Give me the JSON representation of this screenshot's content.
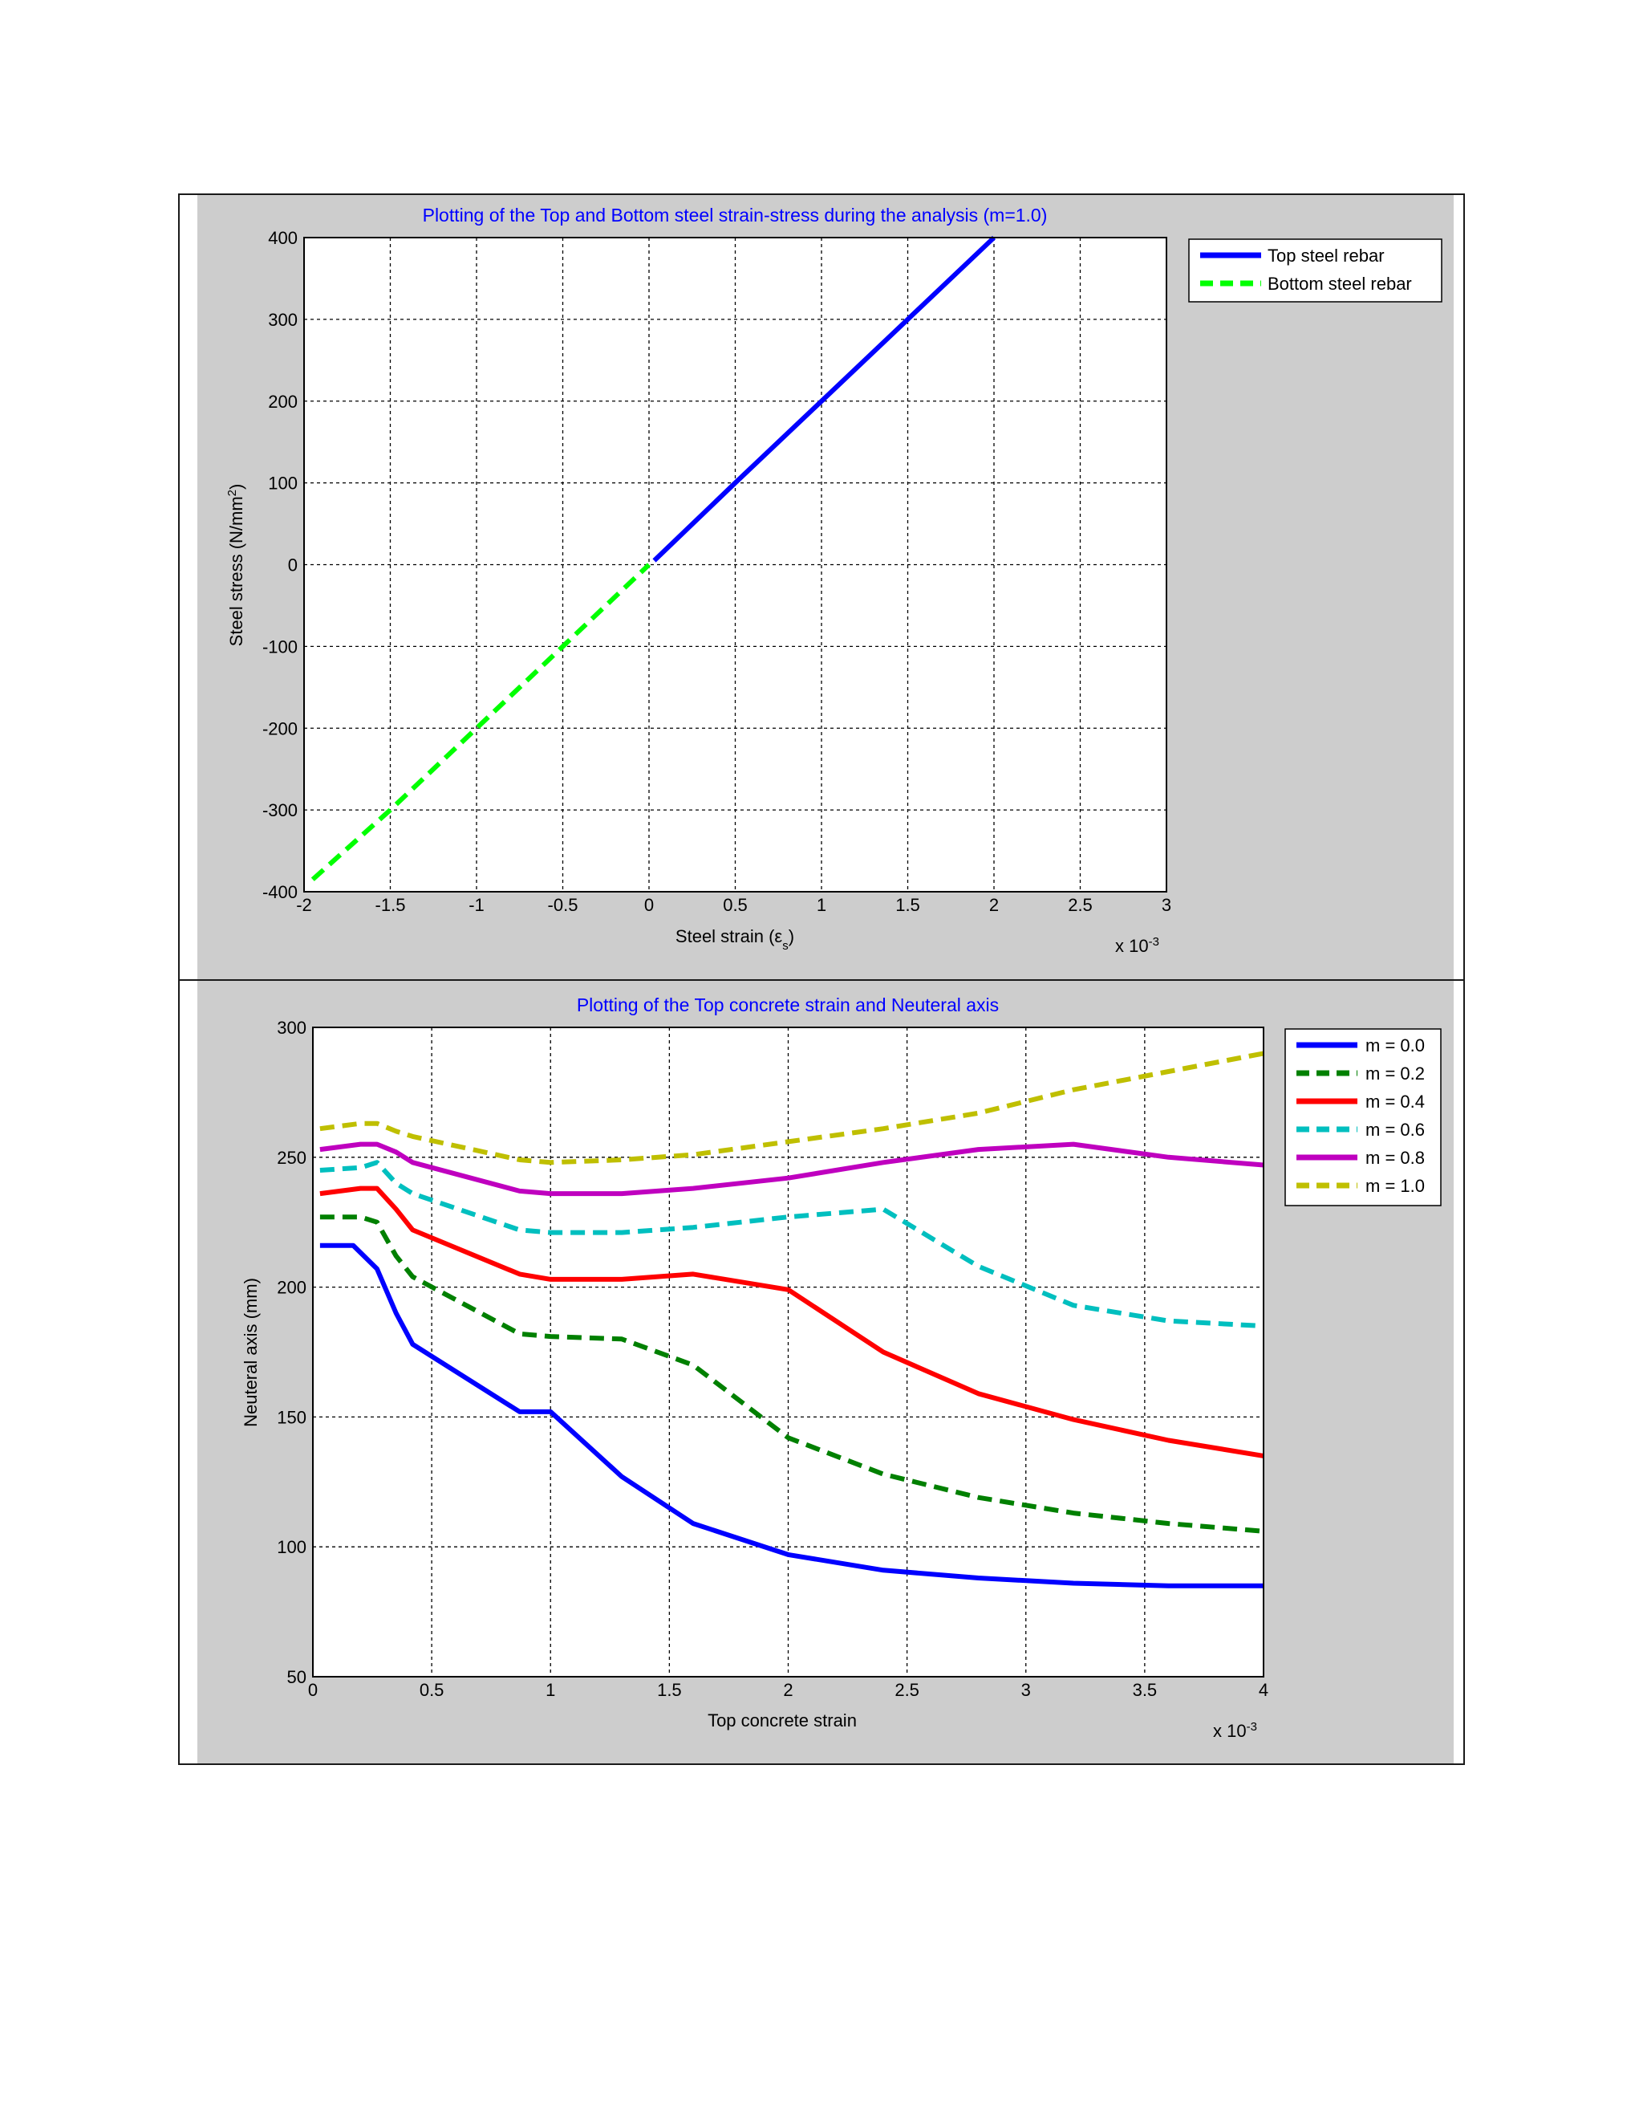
{
  "chart_data": [
    {
      "type": "line",
      "title": "Plotting of the Top  and Bottom steel strain-stress during the analysis (m=1.0)",
      "xlabel": "Steel strain (εs)",
      "xlabel_main": "Steel strain (ε",
      "xlabel_sub": "s",
      "xlabel_end": ")",
      "ylabel": "Steel stress (N/mm2)",
      "ylabel_main": "Steel stress (N/mm",
      "ylabel_sup": "2",
      "ylabel_end": ")",
      "x_multiplier": "x 10-3",
      "x_multiplier_base": "x 10",
      "x_multiplier_exp": "-3",
      "xlim": [
        -2,
        3
      ],
      "ylim": [
        -400,
        400
      ],
      "xticks": [
        "-2",
        "-1.5",
        "-1",
        "-0.5",
        "0",
        "0.5",
        "1",
        "1.5",
        "2",
        "2.5",
        "3"
      ],
      "yticks": [
        "400",
        "300",
        "200",
        "100",
        "0",
        "-100",
        "-200",
        "-300",
        "-400"
      ],
      "grid": true,
      "legend_position": "outside-top-right",
      "series": [
        {
          "name": "Top steel rebar",
          "color": "#0000ff",
          "dash": "solid",
          "x": [
            0.03,
            0.5,
            1.0,
            1.5,
            2.0
          ],
          "y": [
            5,
            100,
            200,
            300,
            400
          ]
        },
        {
          "name": "Bottom steel rebar",
          "color": "#00ff00",
          "dash": "dashed",
          "x": [
            -1.95,
            -1.5,
            -1.0,
            -0.5,
            0.0
          ],
          "y": [
            -385,
            -300,
            -200,
            -100,
            0
          ]
        }
      ]
    },
    {
      "type": "line",
      "title": "Plotting of the Top concrete strain and Neuteral axis",
      "xlabel": "Top concrete strain",
      "ylabel": "Neuteral axis (mm)",
      "x_multiplier": "x 10-3",
      "x_multiplier_base": "x 10",
      "x_multiplier_exp": "-3",
      "xlim": [
        0,
        4
      ],
      "ylim": [
        50,
        300
      ],
      "xticks": [
        "0",
        "0.5",
        "1",
        "1.5",
        "2",
        "2.5",
        "3",
        "3.5",
        "4"
      ],
      "yticks": [
        "300",
        "250",
        "200",
        "150",
        "100",
        "50"
      ],
      "grid": true,
      "legend_position": "outside-top-right",
      "series": [
        {
          "name": "m = 0.0",
          "color": "#0000ff",
          "dash": "solid",
          "x": [
            0.03,
            0.17,
            0.27,
            0.35,
            0.42,
            0.87,
            1.0,
            1.3,
            1.6,
            2.0,
            2.4,
            2.8,
            3.2,
            3.6,
            4.0
          ],
          "y": [
            216,
            216,
            207,
            190,
            178,
            152,
            152,
            127,
            109,
            97,
            91,
            88,
            86,
            85,
            85
          ]
        },
        {
          "name": "m = 0.2",
          "color": "#008000",
          "dash": "dashed",
          "x": [
            0.03,
            0.2,
            0.27,
            0.35,
            0.42,
            0.87,
            1.0,
            1.3,
            1.6,
            2.0,
            2.4,
            2.8,
            3.2,
            3.6,
            4.0
          ],
          "y": [
            227,
            227,
            225,
            212,
            204,
            182,
            181,
            180,
            170,
            142,
            128,
            119,
            113,
            109,
            106
          ]
        },
        {
          "name": "m = 0.4",
          "color": "#ff0000",
          "dash": "solid",
          "x": [
            0.03,
            0.2,
            0.27,
            0.35,
            0.42,
            0.87,
            1.0,
            1.3,
            1.6,
            2.0,
            2.4,
            2.8,
            3.2,
            3.6,
            4.0
          ],
          "y": [
            236,
            238,
            238,
            230,
            222,
            205,
            203,
            203,
            205,
            199,
            175,
            159,
            149,
            141,
            135
          ]
        },
        {
          "name": "m = 0.6",
          "color": "#00bfbf",
          "dash": "dashed",
          "x": [
            0.03,
            0.2,
            0.27,
            0.35,
            0.42,
            0.87,
            1.0,
            1.3,
            1.6,
            2.0,
            2.4,
            2.8,
            3.2,
            3.6,
            4.0
          ],
          "y": [
            245,
            246,
            248,
            240,
            236,
            222,
            221,
            221,
            223,
            227,
            230,
            208,
            193,
            187,
            185
          ]
        },
        {
          "name": "m = 0.8",
          "color": "#bf00bf",
          "dash": "solid",
          "x": [
            0.03,
            0.2,
            0.27,
            0.35,
            0.42,
            0.87,
            1.0,
            1.3,
            1.6,
            2.0,
            2.4,
            2.8,
            3.2,
            3.6,
            4.0
          ],
          "y": [
            253,
            255,
            255,
            252,
            248,
            237,
            236,
            236,
            238,
            242,
            248,
            253,
            255,
            250,
            247
          ]
        },
        {
          "name": "m = 1.0",
          "color": "#bfbf00",
          "dash": "dashed",
          "x": [
            0.03,
            0.2,
            0.27,
            0.35,
            0.42,
            0.87,
            1.0,
            1.3,
            1.6,
            2.0,
            2.4,
            2.8,
            3.2,
            3.6,
            4.0
          ],
          "y": [
            261,
            263,
            263,
            260,
            258,
            249,
            248,
            249,
            251,
            256,
            261,
            267,
            276,
            283,
            290
          ]
        }
      ]
    }
  ]
}
